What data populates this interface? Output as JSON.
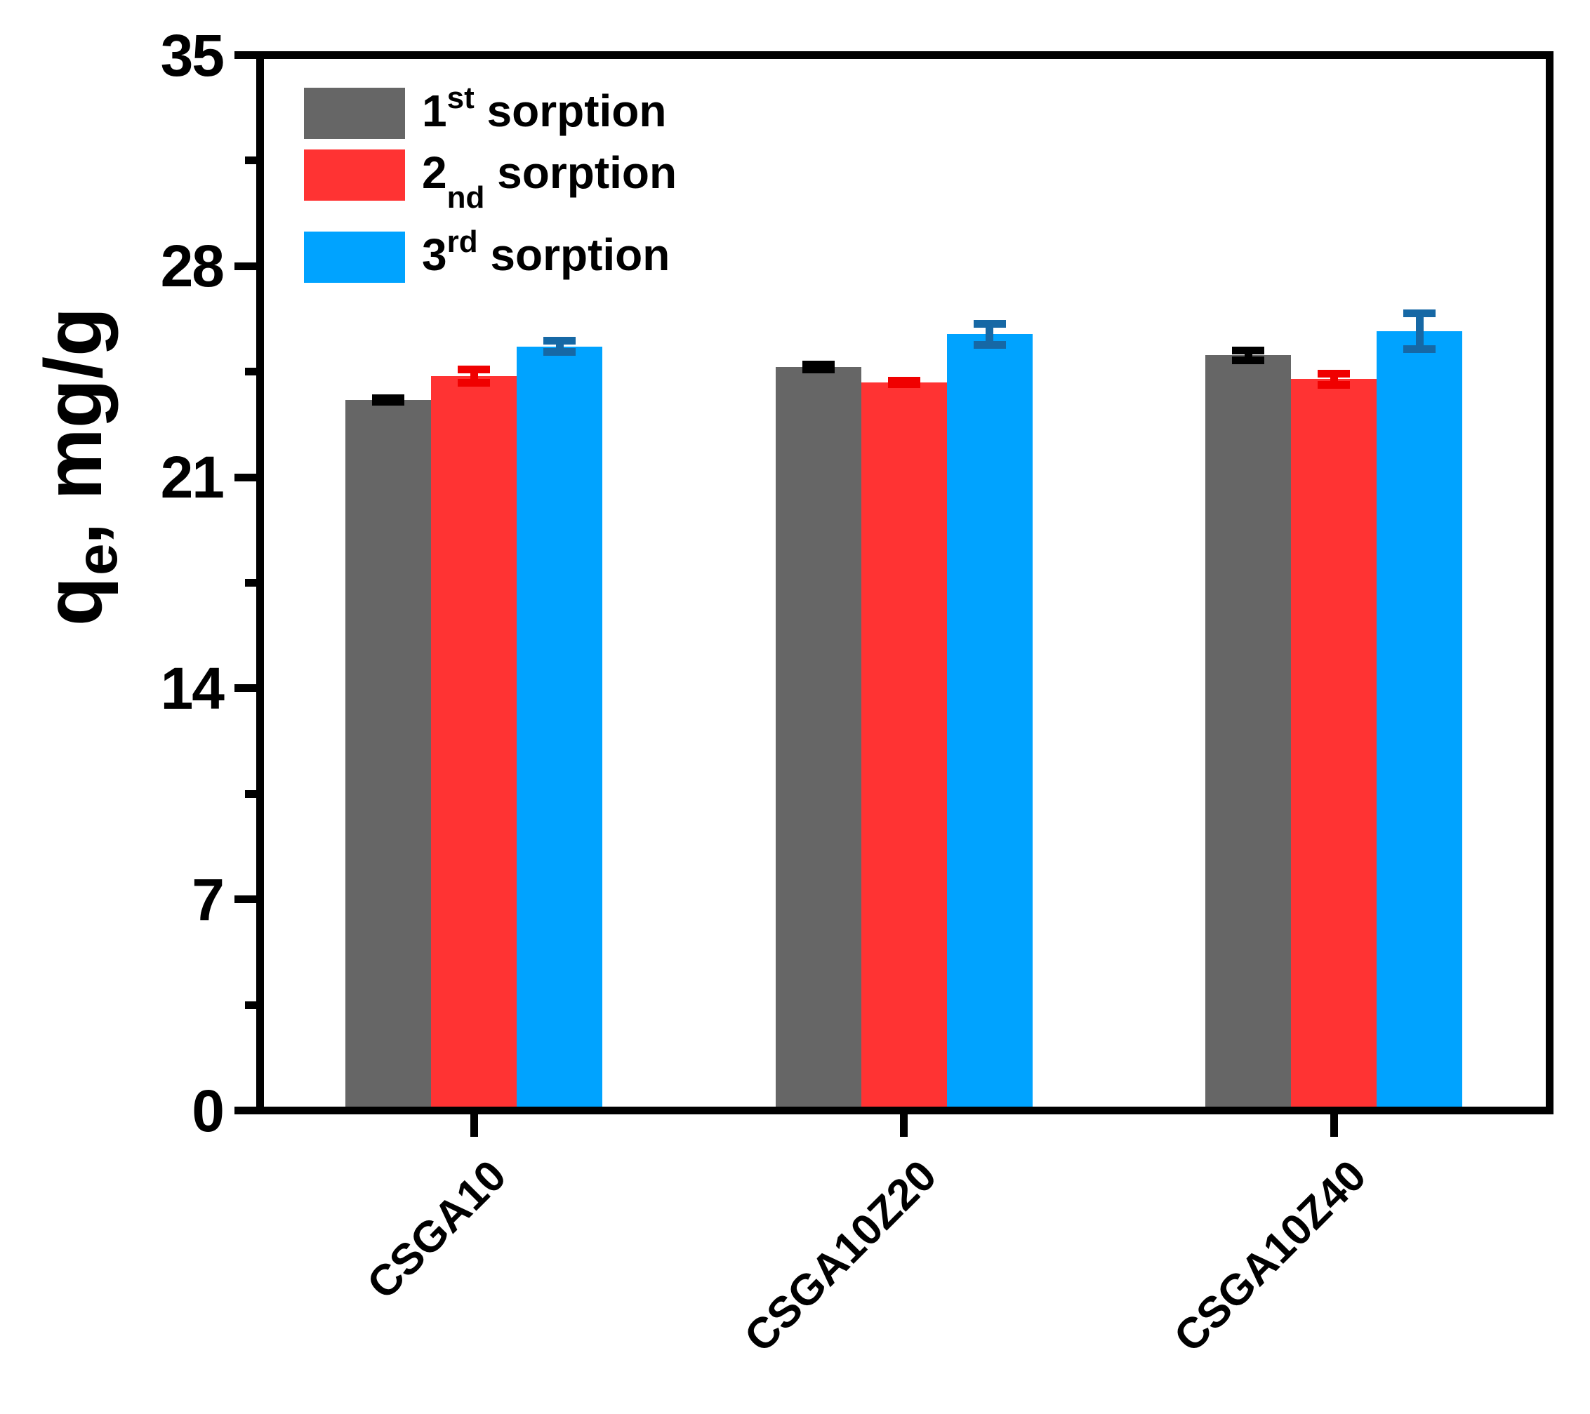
{
  "chart_data": {
    "type": "bar",
    "title": "",
    "ylabel": "qe, mg/g",
    "ylabel_base": "q",
    "ylabel_subscript": "e",
    "ylabel_rest": ", mg/g",
    "xlabel": "",
    "ylim": [
      0,
      35
    ],
    "yticks": [
      0,
      7,
      14,
      21,
      28,
      35
    ],
    "minor_ytick_values": [
      3.5,
      10.5,
      17.5,
      24.5,
      31.5
    ],
    "grid": false,
    "legend_position": "top-left",
    "frame": "full-box",
    "categories": [
      "CSGA10",
      "CSGA10Z20",
      "CSGA10Z40"
    ],
    "series": [
      {
        "name": "1st sorption",
        "label_num": "1",
        "label_ord": "st",
        "ord_style": "sup",
        "label_rest": " sorption",
        "color": "#666666",
        "error_color": "#000000",
        "values": [
          23.6,
          24.7,
          25.1
        ],
        "errors": [
          0.06,
          0.08,
          0.16
        ]
      },
      {
        "name": "2nd sorption",
        "label_num": "2",
        "label_ord": "nd",
        "ord_style": "sub",
        "label_rest": " sorption",
        "color": "#FF3333",
        "error_color": "#F00000",
        "values": [
          24.4,
          24.2,
          24.3
        ],
        "errors": [
          0.22,
          0.06,
          0.19
        ]
      },
      {
        "name": "3rd sorption",
        "label_num": "3",
        "label_ord": "rd",
        "ord_style": "sup",
        "label_rest": " sorption",
        "color": "#00A3FF",
        "error_color": "#1668A5",
        "values": [
          25.4,
          25.8,
          25.9
        ],
        "errors": [
          0.18,
          0.35,
          0.6
        ]
      }
    ],
    "axis_color": "#000000",
    "background_color": "#FFFFFF"
  }
}
